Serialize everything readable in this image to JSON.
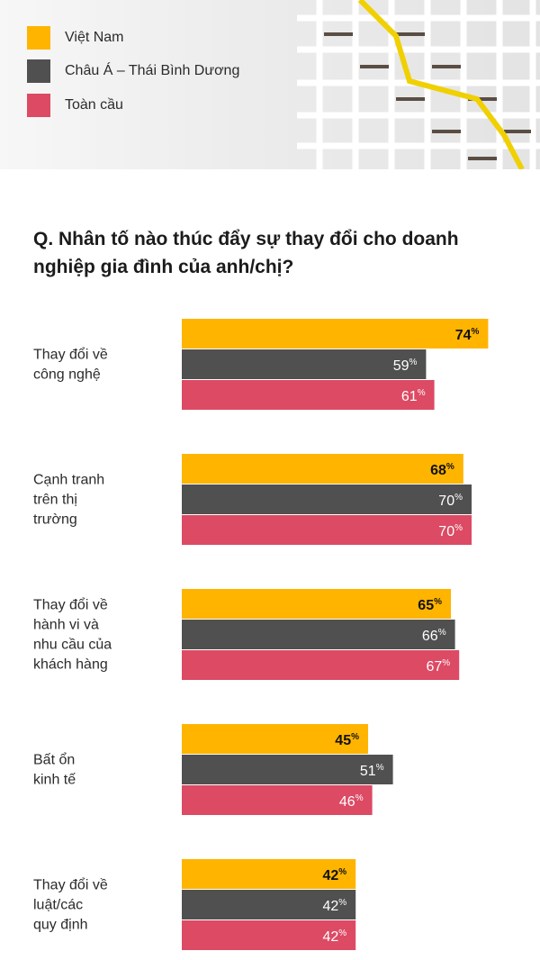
{
  "legend": [
    {
      "label": "Việt Nam",
      "color": "#ffb400"
    },
    {
      "label": "Châu Á – Thái Bình Dương",
      "color": "#505050"
    },
    {
      "label": "Toàn cầu",
      "color": "#dc4a64"
    }
  ],
  "question": "Q. Nhân tố nào thúc đẩy sự thay đổi cho doanh nghiệp gia đình của anh/chị?",
  "chart_data": {
    "type": "bar",
    "orientation": "horizontal",
    "title": "Q. Nhân tố nào thúc đẩy sự thay đổi cho doanh nghiệp gia đình của anh/chị?",
    "categories": [
      [
        "Thay đổi về",
        "công nghệ"
      ],
      [
        "Cạnh tranh",
        "trên thị",
        "trường"
      ],
      [
        "Thay đổi về",
        "hành vi và",
        "nhu cầu của",
        "khách hàng"
      ],
      [
        "Bất ổn",
        "kinh tế"
      ],
      [
        "Thay đổi về",
        "luật/các",
        "quy định"
      ]
    ],
    "series": [
      {
        "name": "Việt Nam",
        "color": "#ffb400",
        "values": [
          74,
          68,
          65,
          45,
          42
        ]
      },
      {
        "name": "Châu Á – Thái Bình Dương",
        "color": "#505050",
        "values": [
          59,
          70,
          66,
          51,
          42
        ]
      },
      {
        "name": "Toàn cầu",
        "color": "#dc4a64",
        "values": [
          61,
          70,
          67,
          46,
          42
        ]
      }
    ],
    "unit": "%",
    "xlim": [
      0,
      100
    ],
    "grid": false,
    "legend_position": "top-left"
  }
}
